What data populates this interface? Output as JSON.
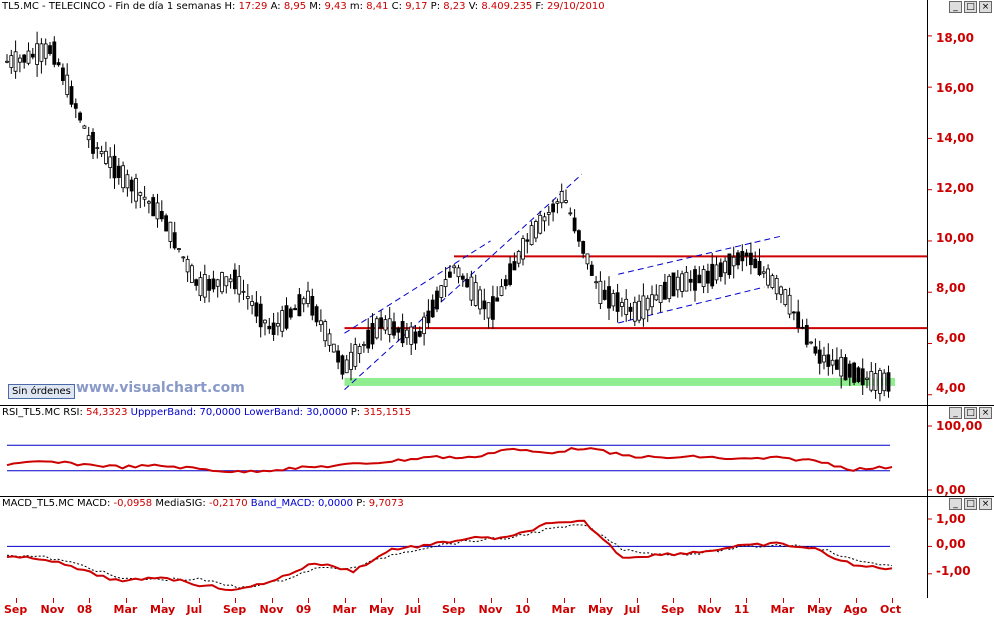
{
  "main": {
    "header": {
      "symbol": "TL5.MC",
      "name": "TELECINCO",
      "period": "Fin de día 1 semanas",
      "h_label": "H:",
      "h_value": "17:29",
      "a_label": "A:",
      "a_value": "8,95",
      "m_label": "M:",
      "m_value": "9,43",
      "mi_label": "m:",
      "mi_value": "8,41",
      "c_label": "C:",
      "c_value": "9,17",
      "p_label": "P:",
      "p_value": "8,23",
      "v_label": "V:",
      "v_value": "8.409.235",
      "f_label": "F:",
      "f_value": "29/10/2010"
    },
    "y_ticks": [
      "18,00",
      "16,00",
      "14,00",
      "12,00",
      "10,00",
      "8,00",
      "6,00",
      "4,00"
    ],
    "orders_button": "Sin órdenes",
    "watermark": "www.visualchart.com"
  },
  "rsi": {
    "header": {
      "name": "RSI_TL5.MC",
      "rsi_label": "RSI:",
      "rsi_value": "54,3323",
      "upper_label": "UppperBand:",
      "upper_value": "70,0000",
      "lower_label": "LowerBand:",
      "lower_value": "30,0000",
      "p_label": "P:",
      "p_value": "315,1515"
    },
    "y_ticks": [
      "100,00",
      "0,00"
    ]
  },
  "macd": {
    "header": {
      "name": "MACD_TL5.MC",
      "macd_label": "MACD:",
      "macd_value": "-0,0958",
      "sig_label": "MediaSIG:",
      "sig_value": "-0,2170",
      "band_label": "Band_MACD:",
      "band_value": "0,0000",
      "p_label": "P:",
      "p_value": "9,7073"
    },
    "y_ticks": [
      "1,00",
      "0,00",
      "-1,00"
    ]
  },
  "x_axis": {
    "labels": [
      "Sep",
      "Nov",
      "08",
      "Mar",
      "May",
      "Jul",
      "Sep",
      "Nov",
      "09",
      "Mar",
      "May",
      "Jul",
      "Sep",
      "Nov",
      "10",
      "Mar",
      "May",
      "Jul",
      "Sep",
      "Nov",
      "11",
      "Mar",
      "May",
      "Ago",
      "Oct"
    ]
  },
  "colors": {
    "accent": "#cc0000",
    "band": "#0000cc",
    "support": "#90ee90",
    "trendline": "#0000cc"
  },
  "chart_data": [
    {
      "type": "candlestick",
      "title": "TL5.MC - TELECINCO - Fin de día 1 semanas",
      "ylim": [
        3.6,
        19.4
      ],
      "x": [
        "2007-09",
        "2007-11",
        "2008-01",
        "2008-03",
        "2008-05",
        "2008-07",
        "2008-09",
        "2008-11",
        "2009-01",
        "2009-03",
        "2009-05",
        "2009-07",
        "2009-09",
        "2009-11",
        "2010-01",
        "2010-03",
        "2010-05",
        "2010-07",
        "2010-09",
        "2010-11",
        "2011-01",
        "2011-03",
        "2011-05",
        "2011-08",
        "2011-10"
      ],
      "close": [
        17.0,
        17.5,
        14.0,
        12.4,
        11.0,
        8.2,
        8.5,
        6.5,
        7.8,
        5.0,
        6.8,
        6.2,
        9.0,
        7.2,
        10.0,
        11.8,
        8.0,
        7.2,
        8.3,
        8.6,
        9.5,
        8.0,
        5.5,
        4.5,
        null
      ],
      "horizontal_levels": [
        9.4,
        6.6
      ],
      "support_zone": 4.5,
      "trendlines": [
        {
          "from": [
            "2009-03",
            4.2
          ],
          "to": [
            "2010-04",
            12.6
          ],
          "style": "dashed"
        },
        {
          "from": [
            "2009-03",
            6.4
          ],
          "to": [
            "2009-11",
            10.0
          ],
          "style": "dashed"
        },
        {
          "from": [
            "2010-06",
            6.8
          ],
          "to": [
            "2011-02",
            8.2
          ],
          "style": "dashed"
        },
        {
          "from": [
            "2010-06",
            8.7
          ],
          "to": [
            "2011-03",
            10.2
          ],
          "style": "dashed"
        }
      ]
    },
    {
      "type": "line",
      "title": "RSI_TL5.MC",
      "ylim": [
        0,
        100
      ],
      "bands": [
        70,
        30
      ],
      "series": [
        {
          "name": "RSI",
          "values": [
            40,
            44,
            40,
            36,
            38,
            33,
            28,
            32,
            36,
            40,
            45,
            52,
            50,
            64,
            58,
            66,
            54,
            50,
            52,
            48,
            50,
            46,
            32,
            36
          ]
        }
      ]
    },
    {
      "type": "line",
      "title": "MACD_TL5.MC",
      "ylim": [
        -1.7,
        1.0
      ],
      "bands": [
        0
      ],
      "series": [
        {
          "name": "MACD",
          "values": [
            -0.4,
            -0.45,
            -0.9,
            -1.3,
            -1.1,
            -1.4,
            -1.6,
            -1.2,
            -0.6,
            -0.9,
            -0.1,
            0.05,
            0.3,
            0.3,
            0.8,
            0.9,
            -0.4,
            -0.3,
            -0.2,
            0.0,
            0.1,
            -0.1,
            -0.7,
            -0.8
          ]
        },
        {
          "name": "MediaSIG",
          "values": [
            -0.3,
            -0.4,
            -0.7,
            -1.2,
            -1.2,
            -1.2,
            -1.5,
            -1.3,
            -0.8,
            -0.8,
            -0.3,
            0.0,
            0.2,
            0.3,
            0.6,
            0.8,
            -0.1,
            -0.3,
            -0.25,
            -0.05,
            0.05,
            0.0,
            -0.5,
            -0.7
          ]
        }
      ]
    }
  ]
}
